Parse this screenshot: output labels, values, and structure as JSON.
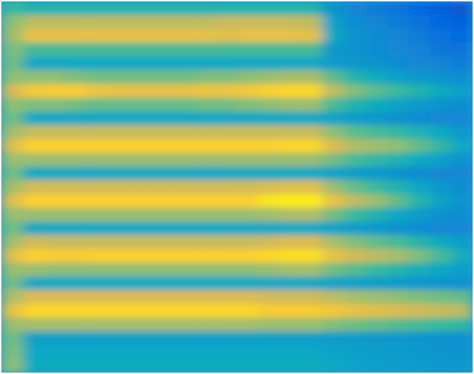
{
  "chart_data": {
    "type": "heatmap",
    "tick_labels": false,
    "zlim": [
      0,
      100
    ],
    "values": [
      [
        50,
        45,
        45,
        45,
        45,
        45,
        45,
        45,
        45,
        45,
        45,
        45,
        45,
        45,
        45,
        30,
        25,
        22,
        18,
        15,
        12,
        10
      ],
      [
        62,
        70,
        70,
        70,
        70,
        70,
        70,
        70,
        70,
        70,
        72,
        72,
        72,
        72,
        70,
        35,
        28,
        25,
        22,
        18,
        15,
        12
      ],
      [
        65,
        80,
        80,
        80,
        80,
        80,
        80,
        80,
        80,
        80,
        78,
        80,
        80,
        80,
        78,
        38,
        30,
        28,
        25,
        22,
        18,
        15
      ],
      [
        60,
        52,
        52,
        52,
        52,
        52,
        52,
        52,
        52,
        52,
        52,
        52,
        52,
        52,
        52,
        32,
        30,
        28,
        26,
        24,
        20,
        18
      ],
      [
        58,
        38,
        38,
        38,
        38,
        38,
        38,
        38,
        38,
        38,
        38,
        38,
        38,
        38,
        38,
        34,
        32,
        30,
        28,
        26,
        24,
        22
      ],
      [
        62,
        62,
        62,
        60,
        58,
        58,
        58,
        58,
        58,
        60,
        60,
        62,
        64,
        66,
        66,
        55,
        45,
        40,
        35,
        32,
        30,
        28
      ],
      [
        75,
        85,
        86,
        86,
        82,
        80,
        80,
        80,
        80,
        82,
        82,
        84,
        88,
        90,
        90,
        70,
        60,
        55,
        50,
        45,
        40,
        35
      ],
      [
        62,
        60,
        60,
        58,
        56,
        56,
        56,
        56,
        56,
        58,
        58,
        60,
        62,
        64,
        64,
        52,
        45,
        40,
        36,
        33,
        30,
        28
      ],
      [
        58,
        38,
        38,
        38,
        38,
        38,
        38,
        38,
        38,
        38,
        38,
        38,
        38,
        38,
        38,
        36,
        34,
        32,
        30,
        28,
        26,
        25
      ],
      [
        66,
        72,
        72,
        72,
        72,
        72,
        72,
        72,
        72,
        72,
        72,
        72,
        72,
        72,
        72,
        62,
        55,
        52,
        48,
        44,
        38,
        32
      ],
      [
        78,
        88,
        88,
        88,
        88,
        88,
        88,
        88,
        88,
        88,
        88,
        88,
        88,
        90,
        90,
        76,
        68,
        65,
        62,
        56,
        48,
        38
      ],
      [
        64,
        64,
        64,
        64,
        64,
        64,
        64,
        64,
        64,
        64,
        64,
        64,
        64,
        64,
        64,
        58,
        52,
        48,
        44,
        40,
        35,
        30
      ],
      [
        58,
        38,
        38,
        38,
        38,
        38,
        38,
        38,
        38,
        38,
        38,
        38,
        38,
        38,
        38,
        36,
        34,
        32,
        30,
        28,
        26,
        25
      ],
      [
        66,
        74,
        74,
        74,
        74,
        74,
        74,
        74,
        74,
        74,
        74,
        74,
        76,
        78,
        78,
        64,
        56,
        50,
        44,
        38,
        32,
        28
      ],
      [
        78,
        88,
        88,
        88,
        88,
        88,
        88,
        88,
        88,
        88,
        88,
        88,
        94,
        96,
        96,
        80,
        70,
        64,
        56,
        46,
        36,
        30
      ],
      [
        64,
        64,
        64,
        64,
        64,
        64,
        64,
        64,
        64,
        64,
        64,
        64,
        66,
        68,
        68,
        58,
        50,
        44,
        38,
        34,
        30,
        28
      ],
      [
        58,
        38,
        38,
        38,
        38,
        38,
        38,
        38,
        38,
        38,
        38,
        38,
        38,
        38,
        38,
        36,
        34,
        32,
        30,
        28,
        26,
        25
      ],
      [
        66,
        74,
        72,
        72,
        72,
        72,
        72,
        72,
        72,
        72,
        72,
        72,
        74,
        76,
        76,
        66,
        60,
        56,
        52,
        46,
        40,
        34
      ],
      [
        78,
        88,
        86,
        86,
        88,
        88,
        88,
        88,
        88,
        88,
        88,
        88,
        90,
        92,
        92,
        80,
        74,
        70,
        66,
        60,
        52,
        42
      ],
      [
        64,
        64,
        62,
        62,
        62,
        62,
        62,
        62,
        62,
        62,
        62,
        62,
        64,
        66,
        66,
        58,
        54,
        50,
        46,
        42,
        38,
        34
      ],
      [
        58,
        38,
        38,
        38,
        38,
        38,
        38,
        38,
        38,
        38,
        38,
        38,
        38,
        38,
        38,
        36,
        35,
        34,
        33,
        32,
        31,
        30
      ],
      [
        68,
        76,
        76,
        76,
        76,
        76,
        76,
        76,
        76,
        76,
        76,
        76,
        74,
        74,
        74,
        70,
        66,
        64,
        62,
        60,
        58,
        56
      ],
      [
        80,
        90,
        90,
        90,
        90,
        90,
        90,
        90,
        90,
        90,
        90,
        90,
        86,
        86,
        86,
        84,
        80,
        78,
        76,
        74,
        72,
        70
      ],
      [
        64,
        66,
        66,
        66,
        66,
        66,
        66,
        66,
        66,
        66,
        66,
        66,
        64,
        64,
        64,
        60,
        58,
        56,
        54,
        52,
        50,
        48
      ],
      [
        58,
        35,
        35,
        35,
        35,
        35,
        35,
        35,
        35,
        35,
        35,
        35,
        35,
        35,
        35,
        34,
        33,
        32,
        32,
        31,
        30,
        30
      ],
      [
        60,
        38,
        38,
        38,
        38,
        38,
        38,
        38,
        38,
        38,
        38,
        38,
        38,
        38,
        38,
        36,
        35,
        34,
        33,
        32,
        31,
        30
      ],
      [
        62,
        40,
        40,
        40,
        40,
        40,
        40,
        40,
        40,
        40,
        40,
        40,
        40,
        40,
        40,
        38,
        36,
        35,
        34,
        33,
        32,
        32
      ]
    ]
  }
}
